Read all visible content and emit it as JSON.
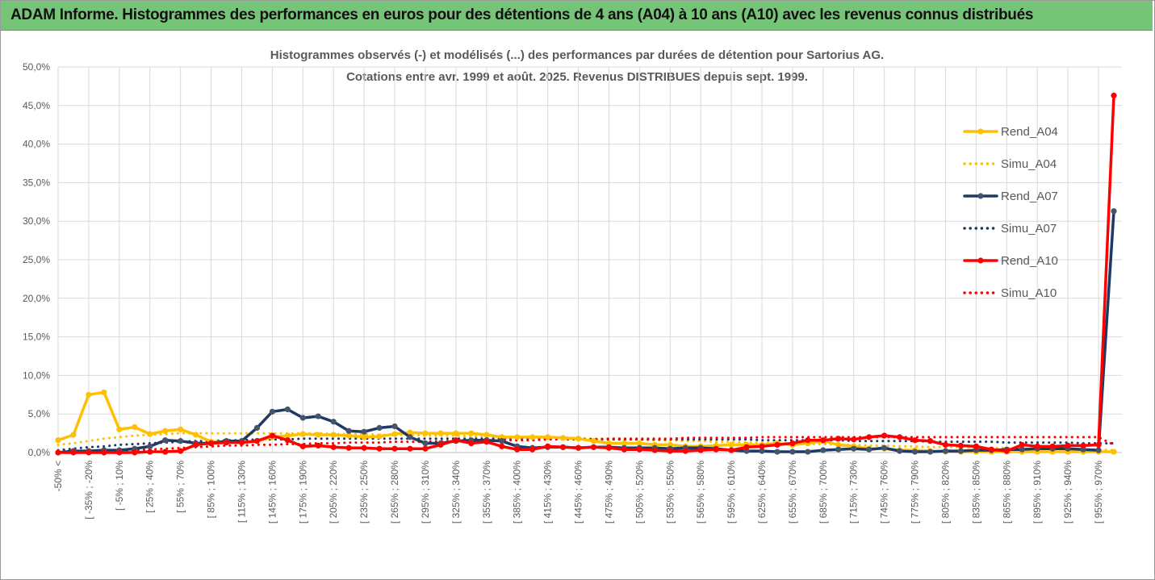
{
  "header": "ADAM Informe. Histogrammes des performances en euros pour des détentions de 4 ans (A04) à 10 ans (A10) avec les revenus connus distribués",
  "chart_data": {
    "type": "line",
    "title": "Histogrammes observés (-) et modélisés (...) des performances par durées de détention pour Sartorius AG.",
    "subtitle": "Cotations entre avr. 1999 et août. 2025. Revenus DISTRIBUES depuis sept. 1999.",
    "categories": [
      "-50% <",
      null,
      "[ -35% ; -20%",
      null,
      "[ -5% ; 10%",
      null,
      "[ 25% ; 40%",
      null,
      "[ 55% ; 70%",
      null,
      "[ 85% ; 100%",
      null,
      "[ 115% ; 130%",
      null,
      "[ 145% ; 160%",
      null,
      "[ 175% ; 190%",
      null,
      "[ 205% ; 220%",
      null,
      "[ 235% ; 250%",
      null,
      "[ 265% ; 280%",
      null,
      "[ 295% ; 310%",
      null,
      "[ 325% ; 340%",
      null,
      "[ 355% ; 370%",
      null,
      "[ 385% ; 400%",
      null,
      "[ 415% ; 430%",
      null,
      "[ 445% ; 460%",
      null,
      "[ 475% ; 490%",
      null,
      "[ 505% ; 520%",
      null,
      "[ 535% ; 550%",
      null,
      "[ 565% ; 580%",
      null,
      "[ 595% ; 610%",
      null,
      "[ 625% ; 640%",
      null,
      "[ 655% ; 670%",
      null,
      "[ 685% ; 700%",
      null,
      "[ 715% ; 730%",
      null,
      "[ 745% ; 760%",
      null,
      "[ 775% ; 790%",
      null,
      "[ 805% ; 820%",
      null,
      "[ 835% ; 850%",
      null,
      "[ 865% ; 880%",
      null,
      "[ 895% ; 910%",
      null,
      "[ 925% ; 940%",
      null,
      "[ 955% ; 970%",
      null
    ],
    "series": [
      {
        "name": "Rend_A04",
        "color": "#ffc000",
        "style": "solid",
        "values": [
          1.6,
          2.3,
          7.5,
          7.8,
          3.0,
          3.3,
          2.4,
          2.8,
          3.0,
          2.3,
          1.4,
          1.4,
          1.3,
          1.5,
          2.0,
          2.2,
          2.4,
          2.3,
          2.3,
          2.2,
          2.0,
          2.1,
          2.4,
          2.6,
          2.5,
          2.5,
          2.5,
          2.5,
          2.3,
          2.0,
          2.0,
          2.0,
          2.0,
          1.9,
          1.8,
          1.5,
          1.2,
          1.2,
          1.2,
          1.0,
          1.0,
          0.8,
          0.8,
          0.9,
          1.0,
          1.0,
          1.0,
          1.2,
          1.0,
          1.2,
          1.5,
          1.0,
          0.8,
          0.5,
          0.5,
          0.3,
          0.3,
          0.2,
          0.1,
          0.1,
          0.1,
          0.1,
          0.1,
          0.1,
          0.1,
          0.1,
          0.1,
          0.1,
          0.1,
          0.1
        ]
      },
      {
        "name": "Simu_A04",
        "color": "#ffc000",
        "style": "dotted",
        "values": [
          1.0,
          1.2,
          1.5,
          1.8,
          2.0,
          2.2,
          2.3,
          2.4,
          2.5,
          2.5,
          2.5,
          2.5,
          2.5,
          2.5,
          2.5,
          2.5,
          2.5,
          2.5,
          2.4,
          2.4,
          2.4,
          2.3,
          2.3,
          2.3,
          2.2,
          2.2,
          2.2,
          2.1,
          2.1,
          2.1,
          2.0,
          2.0,
          2.0,
          1.9,
          1.9,
          1.8,
          1.8,
          1.7,
          1.7,
          1.6,
          1.6,
          1.5,
          1.5,
          1.4,
          1.4,
          1.3,
          1.3,
          1.2,
          1.2,
          1.1,
          1.1,
          1.0,
          1.0,
          0.9,
          0.9,
          0.8,
          0.8,
          0.7,
          0.7,
          0.7,
          0.6,
          0.6,
          0.6,
          0.5,
          0.5,
          0.5,
          0.4,
          0.4,
          0.4,
          0.3
        ]
      },
      {
        "name": "Rend_A07",
        "color": "#1f3864",
        "style": "solid",
        "values": [
          0.0,
          0.2,
          0.2,
          0.3,
          0.3,
          0.5,
          0.8,
          1.6,
          1.5,
          1.2,
          1.2,
          1.5,
          1.5,
          3.2,
          5.3,
          5.6,
          4.5,
          4.7,
          4.0,
          2.8,
          2.7,
          3.2,
          3.4,
          2.0,
          1.2,
          1.2,
          1.5,
          1.6,
          1.6,
          1.5,
          0.8,
          0.6,
          0.7,
          0.7,
          0.6,
          0.7,
          0.7,
          0.6,
          0.6,
          0.6,
          0.5,
          0.6,
          0.6,
          0.5,
          0.3,
          0.2,
          0.2,
          0.1,
          0.1,
          0.1,
          0.3,
          0.4,
          0.5,
          0.4,
          0.6,
          0.2,
          0.1,
          0.1,
          0.2,
          0.2,
          0.3,
          0.3,
          0.4,
          0.4,
          0.5,
          0.5,
          0.5,
          0.4,
          0.3,
          31.3
        ]
      },
      {
        "name": "Simu_A07",
        "color": "#1f3864",
        "style": "dotted",
        "values": [
          0.3,
          0.5,
          0.7,
          0.8,
          1.0,
          1.1,
          1.2,
          1.3,
          1.4,
          1.5,
          1.5,
          1.6,
          1.6,
          1.7,
          1.7,
          1.7,
          1.8,
          1.8,
          1.8,
          1.8,
          1.8,
          1.8,
          1.8,
          1.8,
          1.8,
          1.8,
          1.8,
          1.8,
          1.8,
          1.8,
          1.8,
          1.8,
          1.8,
          1.8,
          1.8,
          1.7,
          1.7,
          1.7,
          1.7,
          1.7,
          1.7,
          1.7,
          1.7,
          1.7,
          1.7,
          1.7,
          1.6,
          1.6,
          1.6,
          1.6,
          1.6,
          1.6,
          1.5,
          1.5,
          1.5,
          1.5,
          1.5,
          1.4,
          1.4,
          1.4,
          1.4,
          1.4,
          1.3,
          1.3,
          1.3,
          1.3,
          1.3,
          1.2,
          1.2,
          1.2
        ]
      },
      {
        "name": "Rend_A10",
        "color": "#ff0000",
        "style": "solid",
        "values": [
          0.0,
          0.0,
          0.0,
          0.0,
          0.0,
          0.0,
          0.1,
          0.1,
          0.2,
          1.0,
          1.2,
          1.3,
          1.3,
          1.5,
          2.2,
          1.6,
          0.8,
          0.9,
          0.7,
          0.6,
          0.6,
          0.5,
          0.5,
          0.5,
          0.5,
          1.0,
          1.6,
          1.2,
          1.4,
          0.8,
          0.4,
          0.4,
          0.8,
          0.7,
          0.6,
          0.7,
          0.6,
          0.4,
          0.4,
          0.3,
          0.2,
          0.2,
          0.3,
          0.4,
          0.3,
          0.7,
          0.8,
          1.0,
          1.2,
          1.6,
          1.6,
          1.8,
          1.7,
          2.0,
          2.2,
          2.0,
          1.6,
          1.5,
          1.0,
          0.9,
          0.8,
          0.4,
          0.2,
          1.0,
          0.8,
          0.8,
          0.9,
          0.9,
          1.0,
          46.3
        ]
      },
      {
        "name": "Simu_A10",
        "color": "#ff0000",
        "style": "dotted",
        "values": [
          0.0,
          0.1,
          0.1,
          0.2,
          0.2,
          0.3,
          0.4,
          0.5,
          0.6,
          0.7,
          0.8,
          0.9,
          0.9,
          1.0,
          1.0,
          1.1,
          1.1,
          1.2,
          1.2,
          1.3,
          1.3,
          1.3,
          1.4,
          1.4,
          1.4,
          1.5,
          1.5,
          1.5,
          1.6,
          1.6,
          1.6,
          1.6,
          1.7,
          1.7,
          1.7,
          1.7,
          1.8,
          1.8,
          1.8,
          1.8,
          1.8,
          1.9,
          1.9,
          1.9,
          1.9,
          1.9,
          2.0,
          2.0,
          2.0,
          2.0,
          2.0,
          2.0,
          2.0,
          2.0,
          2.0,
          2.0,
          2.0,
          2.0,
          2.0,
          2.0,
          2.0,
          2.0,
          2.0,
          2.0,
          2.0,
          2.0,
          2.0,
          2.0,
          2.0,
          1.0
        ]
      }
    ],
    "ylim": [
      0,
      50
    ],
    "yticks": [
      {
        "value": 0,
        "label": "0,0%"
      },
      {
        "value": 5,
        "label": "5,0%"
      },
      {
        "value": 10,
        "label": "10,0%"
      },
      {
        "value": 15,
        "label": "15,0%"
      },
      {
        "value": 20,
        "label": "20,0%"
      },
      {
        "value": 25,
        "label": "25,0%"
      },
      {
        "value": 30,
        "label": "30,0%"
      },
      {
        "value": 35,
        "label": "35,0%"
      },
      {
        "value": 40,
        "label": "40,0%"
      },
      {
        "value": 45,
        "label": "45,0%"
      },
      {
        "value": 50,
        "label": "50,0%"
      }
    ],
    "grid": true,
    "legend": "right"
  }
}
